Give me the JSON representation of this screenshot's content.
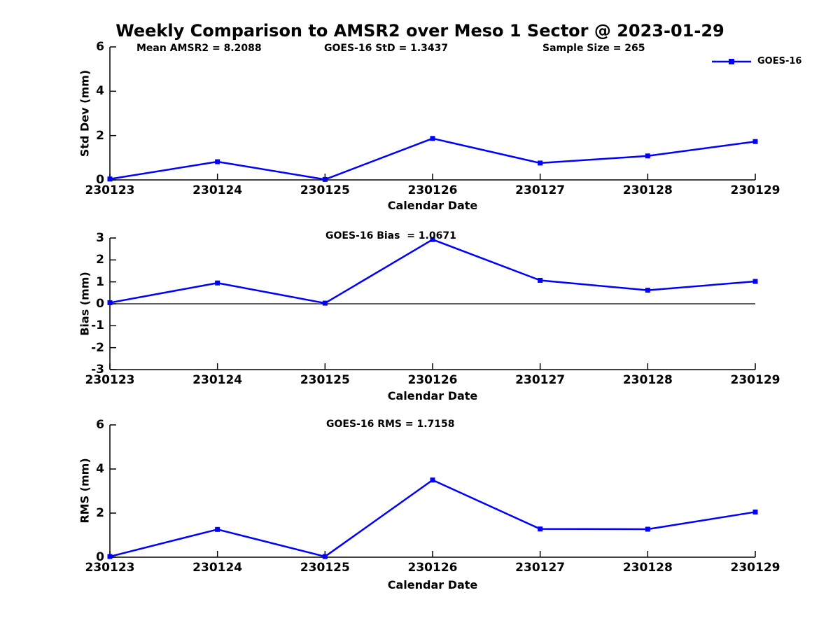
{
  "title": "Weekly Comparison to AMSR2 over Meso 1 Sector @ 2023-01-29",
  "legend": {
    "label": "GOES-16"
  },
  "colors": {
    "line": "#0000ff",
    "axis": "#000000",
    "zero_line": "#000000",
    "text": "#000000"
  },
  "chart_data": [
    {
      "type": "line",
      "name": "std-dev",
      "annotations": [
        "Mean AMSR2 = 8.2088",
        "GOES-16 StD = 1.3437",
        "Sample Size = 265"
      ],
      "categories": [
        "230123",
        "230124",
        "230125",
        "230126",
        "230127",
        "230128",
        "230129"
      ],
      "series": [
        {
          "name": "GOES-16",
          "values": [
            0.04,
            0.82,
            0.02,
            1.87,
            0.76,
            1.08,
            1.73
          ]
        }
      ],
      "xlabel": "Calendar Date",
      "ylabel": "Std Dev (mm)",
      "ylim": [
        0,
        6
      ],
      "yticks": [
        0,
        2,
        4,
        6
      ],
      "zero_line": false,
      "grid": false,
      "legend_position": "top-right"
    },
    {
      "type": "line",
      "name": "bias",
      "annotations": [
        "GOES-16 Bias  = 1.0671"
      ],
      "categories": [
        "230123",
        "230124",
        "230125",
        "230126",
        "230127",
        "230128",
        "230129"
      ],
      "series": [
        {
          "name": "GOES-16",
          "values": [
            0.05,
            0.95,
            0.03,
            2.93,
            1.07,
            0.62,
            1.02
          ]
        }
      ],
      "xlabel": "Calendar Date",
      "ylabel": "Bias (mm)",
      "ylim": [
        -3,
        3
      ],
      "yticks": [
        -3,
        -2,
        -1,
        0,
        1,
        2,
        3
      ],
      "zero_line": true,
      "grid": false
    },
    {
      "type": "line",
      "name": "rms",
      "annotations": [
        "GOES-16 RMS = 1.7158"
      ],
      "categories": [
        "230123",
        "230124",
        "230125",
        "230126",
        "230127",
        "230128",
        "230129"
      ],
      "series": [
        {
          "name": "GOES-16",
          "values": [
            0.03,
            1.26,
            0.03,
            3.5,
            1.28,
            1.27,
            2.05
          ]
        }
      ],
      "xlabel": "Calendar Date",
      "ylabel": "RMS (mm)",
      "ylim": [
        0,
        6
      ],
      "yticks": [
        0,
        2,
        4,
        6
      ],
      "zero_line": false,
      "grid": false
    }
  ]
}
